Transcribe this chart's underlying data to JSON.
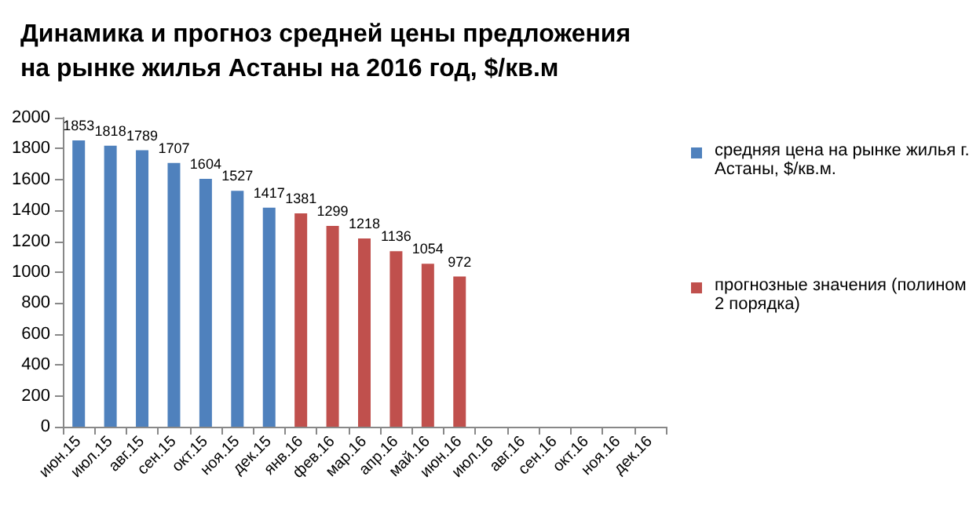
{
  "chart_data": {
    "type": "bar",
    "title": "Динамика и прогноз средней цены предложения\nна рынке жилья Астаны на 2016 год, $/кв.м",
    "categories": [
      "июн.15",
      "июл.15",
      "авг.15",
      "сен.15",
      "окт.15",
      "ноя.15",
      "дек.15",
      "янв.16",
      "фев.16",
      "мар.16",
      "апр.16",
      "май.16",
      "июн.16",
      "июл.16",
      "авг.16",
      "сен.16",
      "окт.16",
      "ноя.16",
      "дек.16"
    ],
    "series": [
      {
        "name": "средняя цена на рынке жилья г. Астаны, $/кв.м.",
        "color": "#4f81bd",
        "values": [
          1853,
          1818,
          1789,
          1707,
          1604,
          1527,
          1417,
          null,
          null,
          null,
          null,
          null,
          null,
          null,
          null,
          null,
          null,
          null,
          null
        ]
      },
      {
        "name": "прогнозные значения (полином 2 порядка)",
        "color": "#c0504d",
        "values": [
          null,
          null,
          null,
          null,
          null,
          null,
          null,
          1381,
          1299,
          1218,
          1136,
          1054,
          972,
          null,
          null,
          null,
          null,
          null,
          null
        ]
      }
    ],
    "ylim": [
      0,
      2000
    ],
    "yticks": [
      0,
      200,
      400,
      600,
      800,
      1000,
      1200,
      1400,
      1600,
      1800,
      2000
    ],
    "grid": false,
    "legend": "right",
    "data_labels": true
  }
}
